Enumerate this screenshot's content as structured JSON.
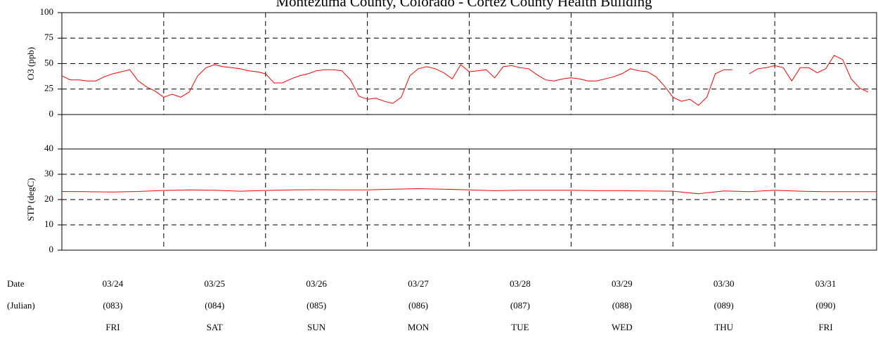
{
  "title": "Montezuma County, Colorado - Cortez County Health Building",
  "chart_data": [
    {
      "type": "line",
      "ylabel": "O3 (ppb)",
      "color": "#ff0000",
      "xlim": [
        0,
        192
      ],
      "xticks": [
        24,
        48,
        72,
        96,
        120,
        144,
        168
      ],
      "ylim": [
        0,
        100
      ],
      "yticks": [
        0,
        25,
        50,
        75,
        100
      ],
      "grid": true,
      "x": [
        0,
        2,
        4,
        6,
        8,
        10,
        12,
        14,
        16,
        18,
        20,
        22,
        24,
        26,
        28,
        30,
        32,
        34,
        36,
        38,
        40,
        42,
        44,
        46,
        48,
        50,
        52,
        54,
        56,
        58,
        60,
        62,
        64,
        66,
        68,
        70,
        72,
        74,
        76,
        78,
        80,
        82,
        84,
        86,
        88,
        90,
        92,
        94,
        96,
        98,
        100,
        102,
        104,
        106,
        108,
        110,
        112,
        114,
        116,
        118,
        120,
        122,
        124,
        126,
        128,
        130,
        132,
        134,
        136,
        138,
        140,
        142,
        144,
        146,
        148,
        150,
        152,
        154,
        156,
        158,
        160,
        162,
        164,
        166,
        168,
        170,
        172,
        174,
        176,
        178,
        180,
        182,
        184,
        186,
        188,
        190
      ],
      "values": [
        38,
        34,
        34,
        33,
        33,
        37,
        40,
        42,
        44,
        33,
        27,
        23,
        17,
        20,
        17,
        22,
        38,
        46,
        49,
        47,
        46,
        45,
        43,
        42,
        40,
        31,
        31,
        35,
        38,
        40,
        43,
        44,
        44,
        43,
        34,
        18,
        15,
        16,
        13,
        11,
        17,
        38,
        45,
        47,
        45,
        41,
        35,
        49,
        42,
        43,
        44,
        36,
        47,
        48,
        46,
        45,
        39,
        34,
        33,
        35,
        36,
        35,
        33,
        33,
        35,
        37,
        40,
        45,
        43,
        42,
        37,
        28,
        17,
        13,
        15,
        9,
        17,
        40,
        44,
        44,
        null,
        40,
        45,
        46,
        48,
        46,
        33,
        46,
        46,
        41,
        45,
        58,
        54,
        35,
        26,
        22
      ]
    },
    {
      "type": "line",
      "ylabel": "STP (degC)",
      "color": "#ff0000",
      "xlim": [
        0,
        192
      ],
      "xticks": [
        24,
        48,
        72,
        96,
        120,
        144,
        168
      ],
      "ylim": [
        0,
        40
      ],
      "yticks": [
        0,
        10,
        20,
        30,
        40
      ],
      "grid": true,
      "x": [
        0,
        6,
        12,
        18,
        24,
        30,
        36,
        42,
        48,
        54,
        60,
        66,
        72,
        78,
        84,
        90,
        96,
        102,
        108,
        114,
        120,
        126,
        132,
        138,
        144,
        150,
        156,
        162,
        168,
        174,
        180,
        186,
        192
      ],
      "values": [
        23.2,
        23.1,
        23.0,
        23.2,
        23.6,
        23.8,
        23.7,
        23.3,
        23.6,
        23.8,
        23.9,
        23.8,
        23.8,
        24.1,
        24.3,
        24.1,
        23.8,
        23.5,
        23.7,
        23.7,
        23.7,
        23.5,
        23.5,
        23.4,
        23.3,
        22.3,
        23.4,
        23.1,
        23.7,
        23.3,
        23.1,
        23.1,
        23.1
      ]
    }
  ],
  "x_labels": {
    "row_labels": [
      "Date",
      "(Julian)"
    ],
    "dates": [
      "03/24",
      "03/25",
      "03/26",
      "03/27",
      "03/28",
      "03/29",
      "03/30",
      "03/31"
    ],
    "julian": [
      "(083)",
      "(084)",
      "(085)",
      "(086)",
      "(087)",
      "(088)",
      "(089)",
      "(090)"
    ],
    "weekdays": [
      "FRI",
      "SAT",
      "SUN",
      "MON",
      "TUE",
      "WED",
      "THU",
      "FRI"
    ]
  }
}
